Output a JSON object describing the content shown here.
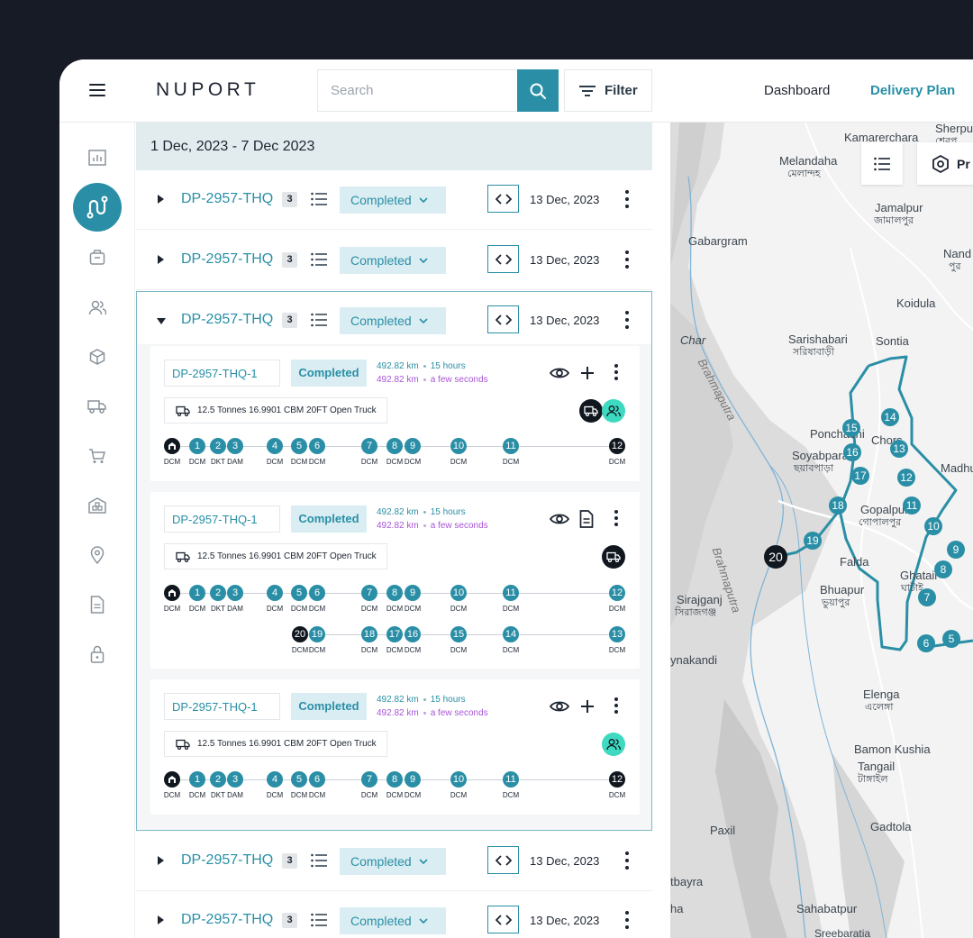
{
  "header": {
    "logo": "NUPORT",
    "search_placeholder": "Search",
    "filter_label": "Filter",
    "nav": [
      "Dashboard",
      "Delivery Plan"
    ]
  },
  "sidebar": {
    "icons": [
      "chart-icon",
      "route-icon",
      "package-icon",
      "users-icon",
      "cube-icon",
      "truck-icon",
      "cart-icon",
      "warehouse-icon",
      "location-icon",
      "document-icon",
      "lock-icon"
    ],
    "active": "route-icon"
  },
  "list": {
    "date_range": "1 Dec, 2023 - 7 Dec 2023",
    "rows": [
      {
        "id": "DP-2957-THQ",
        "count": "3",
        "status": "Completed",
        "date": "13 Dec, 2023"
      },
      {
        "id": "DP-2957-THQ",
        "count": "3",
        "status": "Completed",
        "date": "13 Dec, 2023"
      },
      {
        "id": "DP-2957-THQ",
        "count": "3",
        "status": "Completed",
        "date": "13 Dec, 2023"
      },
      {
        "id": "DP-2957-THQ",
        "count": "3",
        "status": "Completed",
        "date": "13 Dec, 2023"
      },
      {
        "id": "DP-2957-THQ",
        "count": "3",
        "status": "Completed",
        "date": "13 Dec, 2023"
      }
    ],
    "sub_cards": [
      {
        "id": "DP-2957-THQ-1",
        "status": "Completed",
        "distance1": "492.82 km",
        "time1": "15 hours",
        "distance2": "492.82 km",
        "time2": "a few seconds",
        "truck": "12.5 Tonnes 16.9901 CBM 20FT Open Truck"
      },
      {
        "id": "DP-2957-THQ-1",
        "status": "Completed",
        "distance1": "492.82 km",
        "time1": "15 hours",
        "distance2": "492.82 km",
        "time2": "a few seconds",
        "truck": "12.5 Tonnes 16.9901 CBM 20FT Open Truck"
      },
      {
        "id": "DP-2957-THQ-1",
        "status": "Completed",
        "distance1": "492.82 km",
        "time1": "15 hours",
        "distance2": "492.82 km",
        "time2": "a few seconds",
        "truck": "12.5 Tonnes 16.9901 CBM 20FT Open Truck"
      }
    ],
    "timeline_stops": [
      "1",
      "2",
      "3",
      "4",
      "5",
      "6",
      "7",
      "8",
      "9",
      "10",
      "11",
      "12"
    ],
    "timeline_labels": [
      "DCM",
      "DCM",
      "DKT",
      "DAM",
      "DCM",
      "DCM",
      "DCM",
      "DCM",
      "DCM",
      "DCM",
      "DCM",
      "DCM",
      "DCM"
    ],
    "return_stops": [
      "20",
      "19",
      "18",
      "17",
      "16",
      "15",
      "14",
      "13"
    ],
    "return_labels": [
      "DCM",
      "DCM",
      "DCM",
      "DCM",
      "DCM",
      "DCM",
      "DCM",
      "DCM"
    ]
  },
  "map": {
    "labels": [
      "Sherpur",
      "শেরপু",
      "Kamarerchara",
      "Melandaha",
      "মেলান্দহ",
      "Jamalpur",
      "জামালপুর",
      "Gabargram",
      "Nand",
      "পুর",
      "Koidula",
      "Char",
      "Brahmaputra",
      "Sarishabari",
      "সরিষাবাড়ী",
      "Sontia",
      "Ponchashi",
      "Chors",
      "Soyabpara",
      "ছয়াবপাড়া",
      "Madhu",
      "Gopalpur",
      "গোপালপুর",
      "Falda",
      "Bhuapur",
      "ভুয়াপুর",
      "Ghatail",
      "ঘাটাই",
      "Sirajganj",
      "সিরাজগঞ্জ",
      "Brahmaputra",
      "ynakandi",
      "Elenga",
      "এলেঙ্গা",
      "Bamon Kushia",
      "Tangail",
      "টাঙ্গাইল",
      "Gadtola",
      "Paxil",
      "tbayra",
      "Sahabatpur",
      "ha",
      "Sreebaratia"
    ],
    "stops": [
      "20",
      "19",
      "18",
      "17",
      "16",
      "15",
      "14",
      "13",
      "12",
      "11",
      "10",
      "9",
      "8",
      "7",
      "6",
      "5"
    ],
    "button_label": "Pr"
  }
}
